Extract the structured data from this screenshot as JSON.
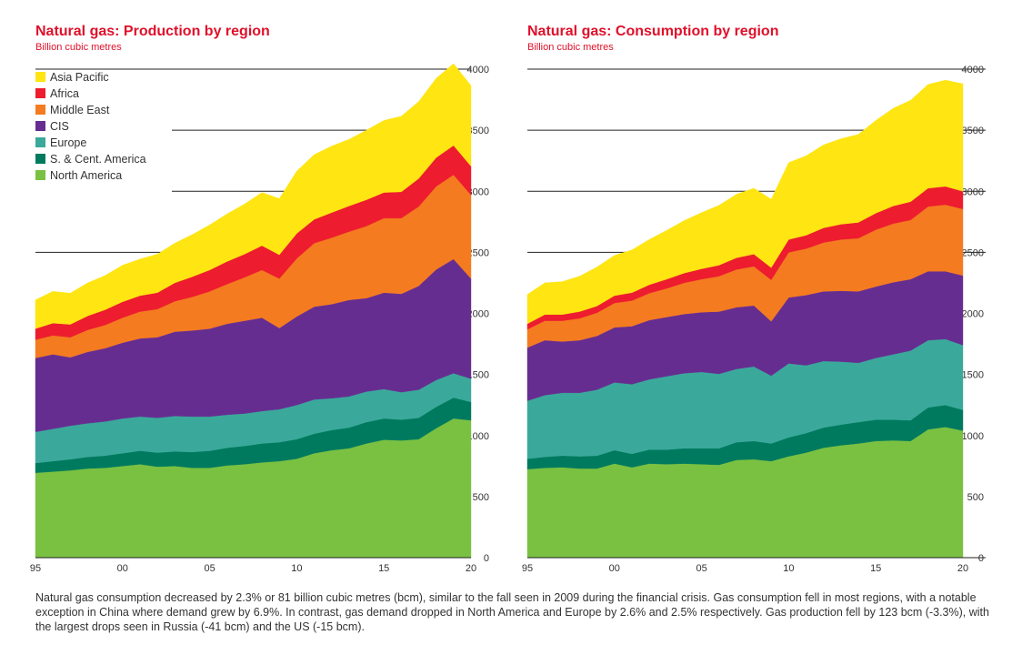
{
  "caption": "Natural gas consumption decreased by 2.3% or 81 billion cubic metres (bcm), similar to the fall seen in 2009 during the financial crisis. Gas consumption fell in most regions, with a notable exception in China where demand grew by 6.9%. In contrast, gas demand dropped in North America and Europe by 2.6% and 2.5% respectively. Gas production fell by 123 bcm (-3.3%), with the largest drops seen in Russia (-41 bcm) and the US (-15 bcm).",
  "colors": {
    "North America": "#7ac142",
    "S. & Cent. America": "#007a5e",
    "Europe": "#3aa99b",
    "CIS": "#662d91",
    "Middle East": "#f47b20",
    "Africa": "#ed1c2e",
    "Asia Pacific": "#ffe511"
  },
  "chart_data": [
    {
      "type": "area",
      "stacked": true,
      "title": "Natural gas: Production by region",
      "subtitle": "Billion cubic metres",
      "x": [
        1995,
        1996,
        1997,
        1998,
        1999,
        2000,
        2001,
        2002,
        2003,
        2004,
        2005,
        2006,
        2007,
        2008,
        2009,
        2010,
        2011,
        2012,
        2013,
        2014,
        2015,
        2016,
        2017,
        2018,
        2019,
        2020
      ],
      "xticks": [
        {
          "v": 1995,
          "label": "95"
        },
        {
          "v": 2000,
          "label": "00"
        },
        {
          "v": 2005,
          "label": "05"
        },
        {
          "v": 2010,
          "label": "10"
        },
        {
          "v": 2015,
          "label": "15"
        },
        {
          "v": 2020,
          "label": "20"
        }
      ],
      "yticks": [
        0,
        500,
        1000,
        1500,
        2000,
        2500,
        3000,
        3500,
        4000
      ],
      "ylim": [
        0,
        4000
      ],
      "legend": [
        "Asia Pacific",
        "Africa",
        "Middle East",
        "CIS",
        "Europe",
        "S. & Cent. America",
        "North America"
      ],
      "legend_position": "top-left",
      "series": [
        {
          "name": "North America",
          "values": [
            695,
            705,
            715,
            730,
            735,
            750,
            765,
            745,
            750,
            735,
            735,
            755,
            765,
            780,
            790,
            810,
            855,
            880,
            895,
            935,
            965,
            960,
            970,
            1060,
            1140,
            1125
          ]
        },
        {
          "name": "S. & Cent. America",
          "values": [
            80,
            85,
            90,
            95,
            100,
            105,
            110,
            115,
            120,
            130,
            140,
            145,
            150,
            155,
            155,
            160,
            160,
            165,
            170,
            175,
            175,
            170,
            175,
            175,
            170,
            150
          ]
        },
        {
          "name": "Europe",
          "values": [
            255,
            265,
            275,
            275,
            280,
            285,
            280,
            285,
            290,
            290,
            280,
            270,
            265,
            265,
            270,
            280,
            280,
            260,
            255,
            250,
            240,
            225,
            230,
            220,
            200,
            190
          ]
        },
        {
          "name": "CIS",
          "values": [
            605,
            610,
            560,
            585,
            600,
            620,
            640,
            660,
            690,
            705,
            720,
            745,
            760,
            765,
            665,
            725,
            760,
            770,
            790,
            765,
            790,
            805,
            850,
            905,
            935,
            820
          ]
        },
        {
          "name": "Middle East",
          "values": [
            150,
            155,
            165,
            180,
            190,
            205,
            220,
            230,
            250,
            275,
            305,
            325,
            355,
            390,
            405,
            475,
            520,
            545,
            560,
            590,
            610,
            620,
            650,
            680,
            690,
            685
          ]
        },
        {
          "name": "Africa",
          "values": [
            90,
            100,
            105,
            115,
            125,
            130,
            130,
            135,
            150,
            165,
            175,
            185,
            190,
            200,
            195,
            205,
            195,
            205,
            210,
            215,
            210,
            215,
            230,
            235,
            240,
            235
          ]
        },
        {
          "name": "Asia Pacific",
          "values": [
            235,
            260,
            255,
            270,
            280,
            300,
            300,
            315,
            325,
            345,
            370,
            390,
            410,
            435,
            460,
            510,
            530,
            545,
            545,
            570,
            590,
            620,
            630,
            650,
            670,
            660
          ]
        }
      ]
    },
    {
      "type": "area",
      "stacked": true,
      "title": "Natural gas: Consumption by region",
      "subtitle": "Billion cubic metres",
      "x": [
        1995,
        1996,
        1997,
        1998,
        1999,
        2000,
        2001,
        2002,
        2003,
        2004,
        2005,
        2006,
        2007,
        2008,
        2009,
        2010,
        2011,
        2012,
        2013,
        2014,
        2015,
        2016,
        2017,
        2018,
        2019,
        2020
      ],
      "xticks": [
        {
          "v": 1995,
          "label": "95"
        },
        {
          "v": 2000,
          "label": "00"
        },
        {
          "v": 2005,
          "label": "05"
        },
        {
          "v": 2010,
          "label": "10"
        },
        {
          "v": 2015,
          "label": "15"
        },
        {
          "v": 2020,
          "label": "20"
        }
      ],
      "yticks": [
        0,
        500,
        1000,
        1500,
        2000,
        2500,
        3000,
        3500,
        4000
      ],
      "ylim": [
        0,
        4000
      ],
      "series": [
        {
          "name": "North America",
          "values": [
            725,
            735,
            740,
            730,
            730,
            770,
            740,
            770,
            765,
            770,
            765,
            760,
            800,
            805,
            790,
            830,
            860,
            900,
            920,
            935,
            955,
            960,
            955,
            1050,
            1070,
            1040
          ]
        },
        {
          "name": "S. & Cent. America",
          "values": [
            85,
            90,
            95,
            100,
            105,
            110,
            110,
            115,
            120,
            125,
            130,
            135,
            145,
            150,
            145,
            155,
            160,
            165,
            170,
            175,
            175,
            170,
            170,
            180,
            180,
            170
          ]
        },
        {
          "name": "Europe",
          "values": [
            475,
            505,
            515,
            520,
            540,
            555,
            570,
            575,
            600,
            615,
            625,
            610,
            600,
            610,
            555,
            605,
            555,
            545,
            515,
            485,
            505,
            535,
            570,
            550,
            540,
            530
          ]
        },
        {
          "name": "CIS",
          "values": [
            435,
            450,
            420,
            430,
            440,
            450,
            475,
            485,
            485,
            485,
            490,
            510,
            505,
            500,
            445,
            540,
            575,
            570,
            580,
            585,
            585,
            590,
            585,
            565,
            555,
            570
          ]
        },
        {
          "name": "Middle East",
          "values": [
            150,
            160,
            170,
            180,
            190,
            200,
            210,
            220,
            235,
            255,
            270,
            290,
            310,
            320,
            340,
            370,
            380,
            400,
            420,
            435,
            465,
            480,
            485,
            530,
            545,
            545
          ]
        },
        {
          "name": "Africa",
          "values": [
            45,
            50,
            50,
            55,
            55,
            60,
            65,
            70,
            75,
            80,
            85,
            90,
            95,
            100,
            100,
            105,
            110,
            120,
            125,
            130,
            135,
            145,
            150,
            150,
            150,
            145
          ]
        },
        {
          "name": "Asia Pacific",
          "values": [
            240,
            260,
            270,
            290,
            320,
            330,
            350,
            370,
            400,
            430,
            460,
            490,
            520,
            540,
            560,
            630,
            650,
            680,
            700,
            720,
            760,
            800,
            830,
            850,
            870,
            880
          ]
        }
      ]
    }
  ]
}
